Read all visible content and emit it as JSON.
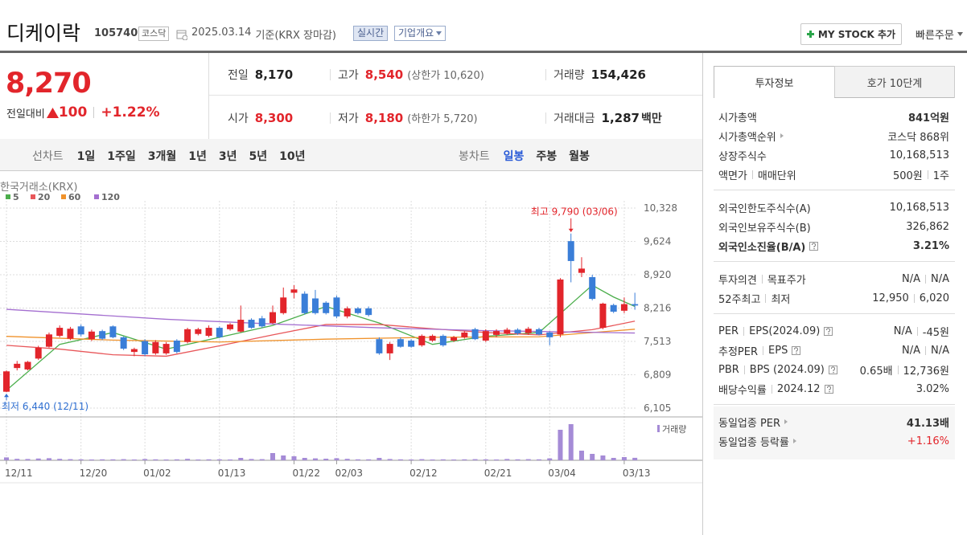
{
  "header": {
    "name": "디케이락",
    "code": "105740",
    "market": "코스닥",
    "date": "2025.03.14",
    "basis": "기준(KRX 장마감)",
    "realtime": "실시간",
    "overview": "기업개요",
    "my_stock": "MY STOCK 추가",
    "quick_order": "빠른주문"
  },
  "price": {
    "current": "8,270",
    "change_label": "전일대비",
    "change": "100",
    "change_rate": "+1.22%",
    "stats": [
      {
        "label": "전일",
        "value": "8,170"
      },
      {
        "label": "고가",
        "value": "8,540",
        "note": "(상한가 10,620)",
        "color": "#e2252b"
      },
      {
        "label": "거래량",
        "value": "154,426"
      },
      {
        "label": "시가",
        "value": "8,300",
        "color": "#e2252b"
      },
      {
        "label": "저가",
        "value": "8,180",
        "note": "(하한가 5,720)",
        "color": "#e2252b"
      },
      {
        "label": "거래대금",
        "value": "1,287",
        "unit": "백만"
      }
    ]
  },
  "tabs": {
    "line_chart": "선차트",
    "periods": [
      "1일",
      "1주일",
      "3개월",
      "1년",
      "3년",
      "5년",
      "10년"
    ],
    "candle_chart": "봉차트",
    "candle_periods": [
      "일봉",
      "주봉",
      "월봉"
    ]
  },
  "chart_data": {
    "type": "candlestick",
    "source": "한국거래소(KRX)",
    "up_color": "#e2252b",
    "down_color": "#3a7ed8",
    "volume_color": "#a58bd6",
    "volume_label": "거래량",
    "grid": true,
    "categories": [
      "12/11",
      null,
      null,
      null,
      null,
      null,
      null,
      "12/20",
      null,
      null,
      null,
      null,
      null,
      "01/02",
      null,
      null,
      null,
      null,
      null,
      null,
      "01/13",
      null,
      null,
      null,
      null,
      null,
      null,
      "01/22",
      null,
      null,
      null,
      "02/03",
      null,
      null,
      null,
      null,
      null,
      null,
      "02/12",
      null,
      null,
      null,
      null,
      null,
      null,
      "02/21",
      null,
      null,
      null,
      null,
      null,
      "03/04",
      null,
      null,
      null,
      null,
      null,
      null,
      "03/13",
      null
    ],
    "open": [
      6450,
      6950,
      6920,
      7150,
      7400,
      7630,
      7570,
      7830,
      7560,
      7730,
      7830,
      7600,
      7290,
      7520,
      7260,
      7260,
      7530,
      7500,
      7670,
      7630,
      7800,
      7770,
      7720,
      7970,
      8000,
      7900,
      8110,
      8540,
      8520,
      8420,
      8330,
      8440,
      8040,
      8210,
      8210,
      7560,
      7260,
      7560,
      7530,
      7430,
      7530,
      7630,
      7530,
      7600,
      7770,
      7530,
      7650,
      7680,
      7760,
      7690,
      7770,
      7700,
      7660,
      9630,
      8960,
      8870,
      7800,
      8280,
      8160,
      8300
    ],
    "high": [
      6900,
      7100,
      7100,
      7420,
      7700,
      7850,
      7820,
      7870,
      7760,
      7760,
      7850,
      7620,
      7380,
      7560,
      7540,
      7500,
      7560,
      7800,
      7800,
      7850,
      7830,
      7900,
      8270,
      8000,
      8050,
      8270,
      8650,
      8700,
      8570,
      8600,
      8360,
      8480,
      8250,
      8240,
      8250,
      7600,
      7500,
      7600,
      7560,
      7660,
      7660,
      7660,
      7630,
      7730,
      7800,
      7770,
      7770,
      7800,
      7790,
      7820,
      7800,
      7730,
      8850,
      9790,
      9290,
      8920,
      8330,
      8310,
      8440,
      8540
    ],
    "low": [
      6440,
      6900,
      6900,
      7120,
      7380,
      7600,
      7540,
      7620,
      7520,
      7540,
      7580,
      7330,
      7200,
      7200,
      7230,
      7230,
      7260,
      7470,
      7640,
      7600,
      7580,
      7740,
      7700,
      7780,
      7800,
      7880,
      8080,
      8420,
      8080,
      8080,
      8080,
      8000,
      8000,
      8080,
      8040,
      7230,
      7120,
      7380,
      7380,
      7400,
      7500,
      7400,
      7500,
      7570,
      7540,
      7500,
      7600,
      7650,
      7650,
      7650,
      7640,
      7430,
      7600,
      8760,
      8870,
      8380,
      7770,
      8110,
      8110,
      8180
    ],
    "close": [
      6880,
      7040,
      7080,
      7380,
      7660,
      7800,
      7780,
      7660,
      7720,
      7570,
      7600,
      7360,
      7350,
      7240,
      7500,
      7460,
      7290,
      7770,
      7770,
      7800,
      7600,
      7870,
      7970,
      7800,
      7830,
      8130,
      8440,
      8610,
      8110,
      8110,
      8110,
      8040,
      8210,
      8110,
      8070,
      7260,
      7460,
      7400,
      7400,
      7630,
      7630,
      7430,
      7600,
      7700,
      7560,
      7730,
      7730,
      7760,
      7680,
      7780,
      7660,
      7600,
      8820,
      9210,
      9050,
      8410,
      8310,
      8140,
      8300,
      8270
    ],
    "volume": [
      180000,
      90000,
      80000,
      110000,
      130000,
      90000,
      70000,
      60000,
      50000,
      60000,
      60000,
      70000,
      50000,
      80000,
      60000,
      50000,
      60000,
      90000,
      50000,
      60000,
      60000,
      50000,
      150000,
      80000,
      70000,
      450000,
      300000,
      250000,
      150000,
      120000,
      100000,
      130000,
      90000,
      60000,
      60000,
      150000,
      80000,
      60000,
      50000,
      70000,
      50000,
      60000,
      50000,
      60000,
      70000,
      60000,
      50000,
      80000,
      60000,
      70000,
      60000,
      120000,
      1900000,
      2250000,
      600000,
      400000,
      300000,
      150000,
      200000,
      154426
    ],
    "moving_averages": [
      {
        "name": "5",
        "color": "#4cae4c",
        "x": [
          0,
          5,
          10,
          15,
          20,
          25,
          30,
          35,
          40,
          45,
          50,
          53,
          55,
          57,
          59
        ],
        "values": [
          6480,
          7450,
          7700,
          7350,
          7600,
          7850,
          8250,
          7900,
          7450,
          7620,
          7700,
          8300,
          8700,
          8450,
          8250
        ]
      },
      {
        "name": "20",
        "color": "#e8575a",
        "x": [
          0,
          5,
          10,
          15,
          20,
          25,
          30,
          35,
          40,
          45,
          50,
          55,
          59
        ],
        "values": [
          7430,
          7350,
          7230,
          7200,
          7420,
          7650,
          7870,
          7870,
          7780,
          7700,
          7650,
          7760,
          7940
        ]
      },
      {
        "name": "60",
        "color": "#f0922b",
        "x": [
          0,
          10,
          20,
          30,
          40,
          50,
          59
        ],
        "values": [
          7620,
          7540,
          7500,
          7560,
          7600,
          7610,
          7770
        ]
      },
      {
        "name": "120",
        "color": "#a46fd0",
        "x": [
          0,
          15,
          25,
          35,
          45,
          59
        ],
        "values": [
          8190,
          7980,
          7880,
          7800,
          7740,
          7690
        ]
      }
    ],
    "ylim": [
      5935,
      10481
    ],
    "yticks": [
      {
        "value": 6105,
        "label": "6,105"
      },
      {
        "value": 6809,
        "label": "6,809"
      },
      {
        "value": 7513,
        "label": "7,513"
      },
      {
        "value": 8216,
        "label": "8,216"
      },
      {
        "value": 8920,
        "label": "8,920"
      },
      {
        "value": 9624,
        "label": "9,624"
      },
      {
        "value": 10328,
        "label": "10,328"
      }
    ],
    "annotations": [
      {
        "text": "최고 9,790 (03/06)",
        "x": 53,
        "value": 9790,
        "color": "#e2252b"
      },
      {
        "text": "최저 6,440 (12/11)",
        "x": 0,
        "value": 6440,
        "color": "#2f6fd1"
      }
    ]
  },
  "invest_info": {
    "tabs": [
      "투자정보",
      "호가 10단계"
    ],
    "groups": [
      [
        {
          "label": [
            "시가총액"
          ],
          "value": [
            "841억원"
          ],
          "value_bold": true
        },
        {
          "label": [
            "시가총액순위"
          ],
          "value": [
            "코스닥 868위"
          ],
          "arrow": true
        },
        {
          "label": [
            "상장주식수"
          ],
          "value": [
            "10,168,513"
          ]
        },
        {
          "label": [
            "액면가",
            "매매단위"
          ],
          "value": [
            "500원",
            "1주"
          ]
        }
      ],
      [
        {
          "label": [
            "외국인한도주식수(A)"
          ],
          "value": [
            "10,168,513"
          ]
        },
        {
          "label": [
            "외국인보유주식수(B)"
          ],
          "value": [
            "326,862"
          ]
        },
        {
          "label": [
            "외국인소진율(B/A)"
          ],
          "value": [
            "3.21%"
          ],
          "help": true,
          "label_bold": true,
          "value_bold": true
        }
      ],
      [
        {
          "label": [
            "투자의견",
            "목표주가"
          ],
          "value": [
            "N/A",
            "N/A"
          ]
        },
        {
          "label": [
            "52주최고",
            "최저"
          ],
          "value": [
            "12,950",
            "6,020"
          ]
        }
      ],
      [
        {
          "label": [
            "PER",
            "EPS(2024.09)"
          ],
          "value": [
            "N/A",
            "-45원"
          ],
          "help": true
        },
        {
          "label": [
            "추정PER",
            "EPS"
          ],
          "value": [
            "N/A",
            "N/A"
          ],
          "help": true
        },
        {
          "label": [
            "PBR",
            "BPS (2024.09)"
          ],
          "value": [
            "0.65배",
            "12,736원"
          ],
          "help": true
        },
        {
          "label": [
            "배당수익률",
            "2024.12"
          ],
          "value": [
            "3.02%"
          ],
          "help": true
        }
      ],
      [
        {
          "label": [
            "동일업종 PER"
          ],
          "value": [
            "41.13배"
          ],
          "arrow": true,
          "value_bold": true
        },
        {
          "label": [
            "동일업종 등락률"
          ],
          "value": [
            "+1.16%"
          ],
          "arrow": true,
          "value_color": "#e2252b"
        }
      ]
    ]
  }
}
